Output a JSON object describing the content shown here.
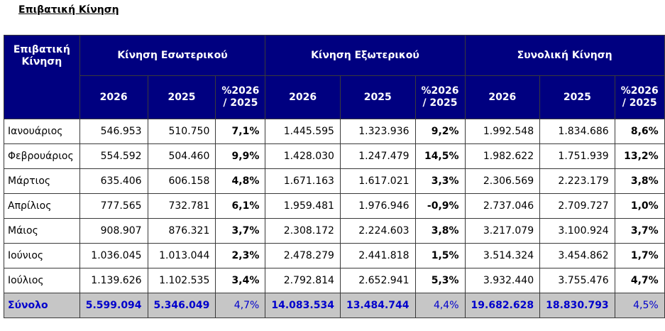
{
  "title": "Επιβατική Κίνηση",
  "table": {
    "corner_label": "Επιβατική Κίνηση",
    "groups": [
      "Κίνηση Εσωτερικού",
      "Κίνηση Εξωτερικού",
      "Συνολική Κίνηση"
    ],
    "subheaders": [
      "2026",
      "2025",
      "%2026 / 2025"
    ],
    "rows": [
      {
        "month": "Ιανουάριος",
        "cells": [
          "546.953",
          "510.750",
          "7,1%",
          "1.445.595",
          "1.323.936",
          "9,2%",
          "1.992.548",
          "1.834.686",
          "8,6%"
        ]
      },
      {
        "month": "Φεβρουάριος",
        "cells": [
          "554.592",
          "504.460",
          "9,9%",
          "1.428.030",
          "1.247.479",
          "14,5%",
          "1.982.622",
          "1.751.939",
          "13,2%"
        ]
      },
      {
        "month": "Μάρτιος",
        "cells": [
          "635.406",
          "606.158",
          "4,8%",
          "1.671.163",
          "1.617.021",
          "3,3%",
          "2.306.569",
          "2.223.179",
          "3,8%"
        ]
      },
      {
        "month": "Απρίλιος",
        "cells": [
          "777.565",
          "732.781",
          "6,1%",
          "1.959.481",
          "1.976.946",
          "-0,9%",
          "2.737.046",
          "2.709.727",
          "1,0%"
        ]
      },
      {
        "month": "Μάιος",
        "cells": [
          "908.907",
          "876.321",
          "3,7%",
          "2.308.172",
          "2.224.603",
          "3,8%",
          "3.217.079",
          "3.100.924",
          "3,7%"
        ]
      },
      {
        "month": "Ιούνιος",
        "cells": [
          "1.036.045",
          "1.013.044",
          "2,3%",
          "2.478.279",
          "2.441.818",
          "1,5%",
          "3.514.324",
          "3.454.862",
          "1,7%"
        ]
      },
      {
        "month": "Ιούλιος",
        "cells": [
          "1.139.626",
          "1.102.535",
          "3,4%",
          "2.792.814",
          "2.652.941",
          "5,3%",
          "3.932.440",
          "3.755.476",
          "4,7%"
        ]
      }
    ],
    "total": {
      "label": "Σύνολο",
      "cells": [
        "5.599.094",
        "5.346.049",
        "4,7%",
        "14.083.534",
        "13.484.744",
        "4,4%",
        "19.682.628",
        "18.830.793",
        "4,5%"
      ]
    }
  }
}
